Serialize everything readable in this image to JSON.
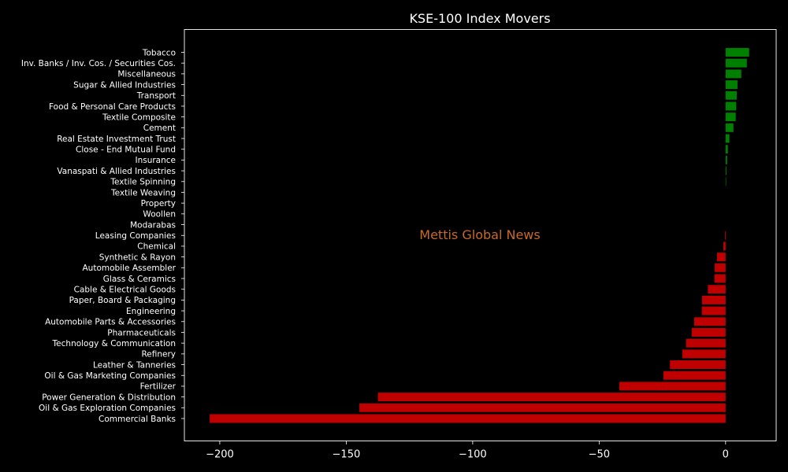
{
  "chart_data": {
    "type": "bar",
    "orientation": "horizontal",
    "title": "KSE-100 Index Movers",
    "watermark": "Mettis Global News",
    "xlabel": "",
    "ylabel": "",
    "xlim": [
      -214,
      20
    ],
    "grid": false,
    "legend": "none",
    "x_ticks": [
      -200,
      -150,
      -100,
      -50,
      0
    ],
    "x_tick_labels": [
      "−200",
      "−150",
      "−100",
      "−50",
      "0"
    ],
    "categories": [
      "Tobacco",
      "Inv. Banks / Inv. Cos. / Securities Cos.",
      "Miscellaneous",
      "Sugar & Allied Industries",
      "Transport",
      "Food & Personal Care Products",
      "Textile Composite",
      "Cement",
      "Real Estate Investment Trust",
      "Close - End Mutual Fund",
      "Insurance",
      "Vanaspati & Allied Industries",
      "Textile Spinning",
      "Textile Weaving",
      "Property",
      "Woollen",
      "Modarabas",
      "Leasing Companies",
      "Chemical",
      "Synthetic & Rayon",
      "Automobile Assembler",
      "Glass & Ceramics",
      "Cable & Electrical Goods",
      "Paper, Board & Packaging",
      "Engineering",
      "Automobile Parts & Accessories",
      "Pharmaceuticals",
      "Technology & Communication",
      "Refinery",
      "Leather & Tanneries",
      "Oil & Gas Marketing Companies",
      "Fertilizer",
      "Power Generation & Distribution",
      "Oil & Gas Exploration Companies",
      "Commercial Banks"
    ],
    "values": [
      9.3,
      8.4,
      6.2,
      4.7,
      4.4,
      4.2,
      4.0,
      3.1,
      1.5,
      0.9,
      0.6,
      0.3,
      0.2,
      0.0,
      0.0,
      0.0,
      0.0,
      -0.3,
      -0.9,
      -3.4,
      -4.3,
      -4.4,
      -7.0,
      -9.3,
      -9.4,
      -12.4,
      -13.4,
      -15.6,
      -17.1,
      -22.0,
      -24.6,
      -42.0,
      -137.5,
      -144.8,
      -204.0
    ],
    "colors": {
      "positive": "#008000",
      "negative": "#c00000",
      "background": "#000000",
      "foreground": "#ffffff",
      "watermark": "#c8692a"
    }
  }
}
